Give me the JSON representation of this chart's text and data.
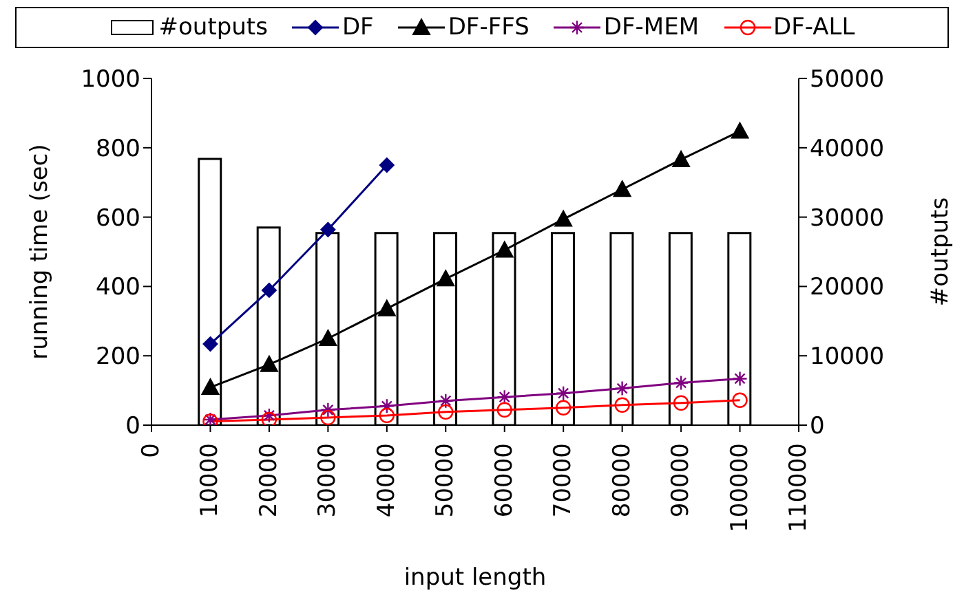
{
  "chart_data": {
    "type": "line",
    "xlabel": "input length",
    "ylabel": "running time (sec)",
    "y2label": "#outputs",
    "x": [
      10000,
      20000,
      30000,
      40000,
      50000,
      60000,
      70000,
      80000,
      90000,
      100000
    ],
    "xlim": [
      0,
      110000
    ],
    "xticks": [
      0,
      10000,
      20000,
      30000,
      40000,
      50000,
      60000,
      70000,
      80000,
      90000,
      100000,
      110000
    ],
    "ylim": [
      0,
      1000
    ],
    "yticks": [
      0,
      200,
      400,
      600,
      800,
      1000
    ],
    "y2lim": [
      0,
      50000
    ],
    "y2ticks": [
      0,
      10000,
      20000,
      30000,
      40000,
      50000
    ],
    "legend": "top",
    "series": [
      {
        "name": "#outputs",
        "type": "bar",
        "axis": "y2",
        "color": "#ffffff",
        "values": [
          38400,
          28500,
          27700,
          27700,
          27700,
          27700,
          27700,
          27700,
          27700,
          27700
        ]
      },
      {
        "name": "DF",
        "color": "#000080",
        "marker": "diamond",
        "values": [
          234,
          389,
          564,
          750,
          null,
          null,
          null,
          null,
          null,
          null
        ]
      },
      {
        "name": "DF-FFS",
        "color": "#000000",
        "marker": "triangle",
        "values": [
          109,
          175,
          250,
          336,
          422,
          505,
          594,
          680,
          766,
          848
        ]
      },
      {
        "name": "DF-MEM",
        "color": "#800080",
        "marker": "cross",
        "values": [
          16,
          28,
          44,
          55,
          70,
          81,
          92,
          106,
          122,
          134
        ]
      },
      {
        "name": "DF-ALL",
        "color": "#ff0000",
        "marker": "circle",
        "values": [
          11,
          16,
          22,
          28,
          38,
          44,
          50,
          58,
          64,
          72
        ]
      }
    ]
  }
}
